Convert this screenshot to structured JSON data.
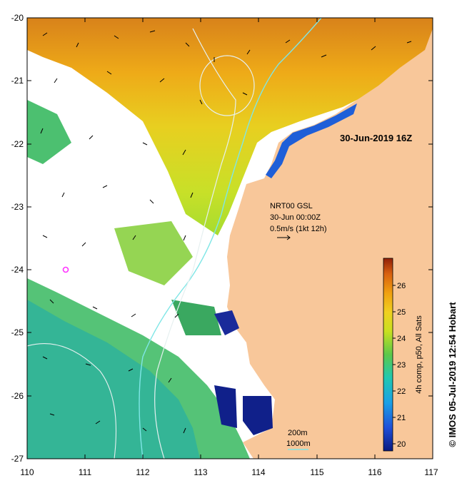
{
  "map": {
    "timestamp": "30-Jun-2019 16Z",
    "lat_ticks": [
      "-20",
      "-21",
      "-22",
      "-23",
      "-24",
      "-25",
      "-26",
      "-27"
    ],
    "lon_ticks": [
      "110",
      "111",
      "112",
      "113",
      "114",
      "115",
      "116",
      "117"
    ],
    "lat_range": [
      -27,
      -20
    ],
    "lon_range": [
      110,
      117
    ],
    "current_legend": {
      "line1": "NRT00 GSL",
      "line2": "30-Jun 00:00Z",
      "line3": "0.5m/s (1kt 12h)"
    },
    "contours": {
      "label_200": "200m",
      "label_1000": "1000m"
    },
    "colorbar": {
      "label": "4h comp, p50, All Sats",
      "ticks": [
        "20",
        "21",
        "22",
        "23",
        "24",
        "25",
        "26"
      ],
      "range": [
        19.6,
        26.9
      ]
    },
    "credit": "© IMOS 05-Jul-2019 12:54 Hobart",
    "colors": {
      "land": "#f8c79a",
      "cloud": "#ffffff",
      "contour_200": "#7fe6e6",
      "contour_1000": "#e6f0f0",
      "marker": "#ff33ff"
    }
  }
}
